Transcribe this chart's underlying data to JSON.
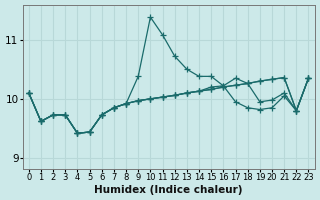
{
  "xlabel": "Humidex (Indice chaleur)",
  "xlim": [
    -0.5,
    23.5
  ],
  "ylim": [
    8.82,
    11.58
  ],
  "yticks": [
    9,
    10,
    11
  ],
  "xticks": [
    0,
    1,
    2,
    3,
    4,
    5,
    6,
    7,
    8,
    9,
    10,
    11,
    12,
    13,
    14,
    15,
    16,
    17,
    18,
    19,
    20,
    21,
    22,
    23
  ],
  "bg_color": "#cce9e9",
  "line_color": "#1a6b6b",
  "grid_color": "#b8d8d8",
  "lines": [
    [
      10.1,
      9.62,
      9.73,
      9.73,
      9.42,
      9.44,
      9.73,
      9.85,
      9.92,
      10.38,
      11.38,
      11.08,
      10.72,
      10.5,
      10.38,
      10.38,
      10.22,
      9.95,
      9.85,
      9.82,
      9.85,
      10.05,
      9.8,
      10.35
    ],
    [
      10.1,
      9.62,
      9.73,
      9.73,
      9.42,
      9.44,
      9.73,
      9.85,
      9.92,
      9.97,
      10.0,
      10.03,
      10.06,
      10.1,
      10.13,
      10.16,
      10.2,
      10.23,
      10.26,
      10.3,
      10.33,
      10.36,
      9.8,
      10.35
    ],
    [
      10.1,
      9.62,
      9.73,
      9.73,
      9.42,
      9.44,
      9.73,
      9.85,
      9.92,
      9.97,
      10.0,
      10.03,
      10.06,
      10.1,
      10.13,
      10.16,
      10.2,
      10.23,
      10.26,
      10.3,
      10.33,
      10.36,
      9.8,
      10.35
    ],
    [
      10.1,
      9.62,
      9.73,
      9.73,
      9.42,
      9.44,
      9.73,
      9.85,
      9.92,
      9.97,
      10.0,
      10.03,
      10.06,
      10.1,
      10.13,
      10.2,
      10.22,
      10.35,
      10.26,
      9.95,
      9.98,
      10.1,
      9.8,
      10.35
    ]
  ],
  "marker": "+",
  "linewidth": 0.9,
  "markersize": 4.0
}
